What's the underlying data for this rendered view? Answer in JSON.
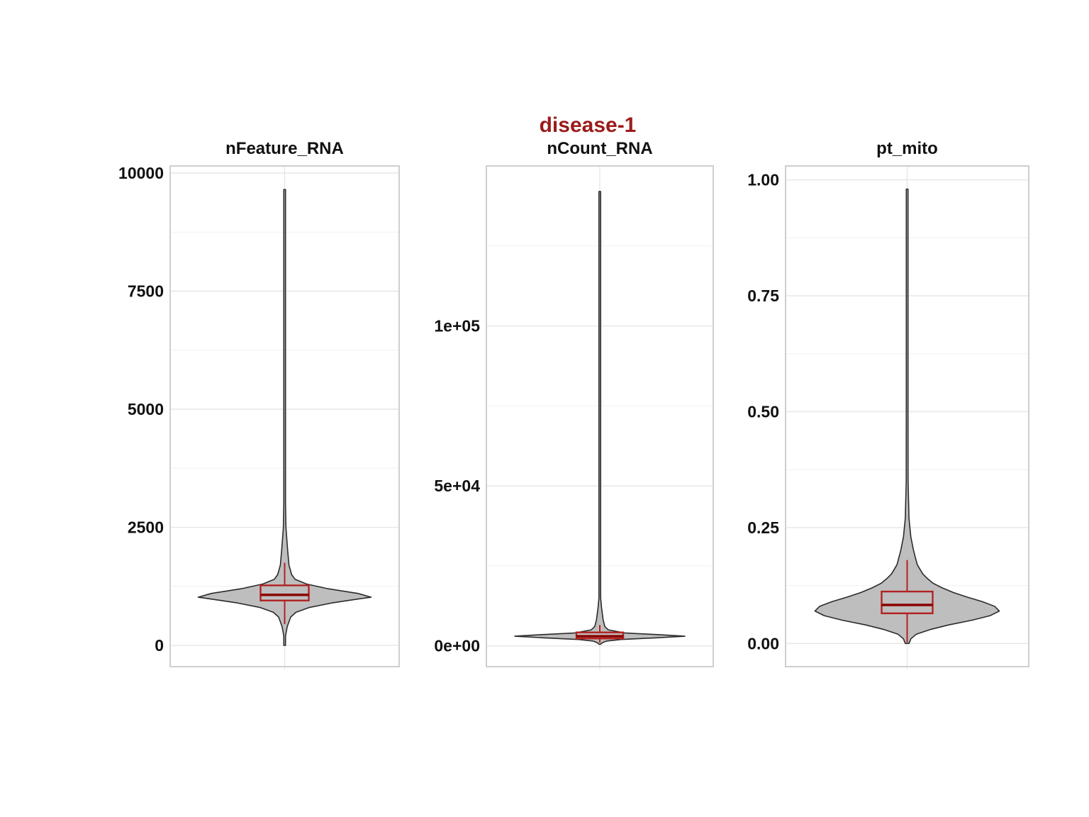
{
  "chart_data": {
    "type": "violin",
    "title": "disease-1",
    "title_color": "#9b1b1b",
    "violin_fill": "#bebebe",
    "box_color": "#b22222",
    "grid": true,
    "panels": [
      {
        "name": "nFeature_RNA",
        "ylim": [
          -450,
          10150
        ],
        "yticks": [
          0,
          2500,
          5000,
          7500,
          10000
        ],
        "ytick_labels": [
          "0",
          "2500",
          "5000",
          "7500",
          "10000"
        ],
        "box": {
          "min": 450,
          "q1": 950,
          "median": 1070,
          "q3": 1270,
          "max": 1750
        },
        "density": [
          [
            0,
            0.002
          ],
          [
            200,
            0.01
          ],
          [
            400,
            0.03
          ],
          [
            600,
            0.07
          ],
          [
            700,
            0.13
          ],
          [
            800,
            0.28
          ],
          [
            900,
            0.55
          ],
          [
            1000,
            0.92
          ],
          [
            1020,
            1.0
          ],
          [
            1100,
            0.85
          ],
          [
            1200,
            0.5
          ],
          [
            1300,
            0.25
          ],
          [
            1400,
            0.12
          ],
          [
            1500,
            0.08
          ],
          [
            1700,
            0.05
          ],
          [
            2000,
            0.035
          ],
          [
            2500,
            0.015
          ],
          [
            3000,
            0.007
          ],
          [
            4000,
            0.004
          ],
          [
            6000,
            0.002
          ],
          [
            8000,
            0.002
          ],
          [
            9650,
            0.002
          ]
        ]
      },
      {
        "name": "nCount_RNA",
        "ylim": [
          -6500,
          150000
        ],
        "yticks": [
          0,
          50000,
          100000
        ],
        "ytick_labels": [
          "0e+00",
          "5e+04",
          "1e+05"
        ],
        "box": {
          "min": 1000,
          "q1": 2300,
          "median": 3000,
          "q3": 4200,
          "max": 6500
        },
        "density": [
          [
            500,
            0.005
          ],
          [
            1000,
            0.03
          ],
          [
            1500,
            0.08
          ],
          [
            2000,
            0.25
          ],
          [
            2500,
            0.65
          ],
          [
            3000,
            1.0
          ],
          [
            3500,
            0.7
          ],
          [
            4000,
            0.3
          ],
          [
            5000,
            0.1
          ],
          [
            6000,
            0.06
          ],
          [
            8000,
            0.04
          ],
          [
            10000,
            0.03
          ],
          [
            12000,
            0.02
          ],
          [
            15000,
            0.01
          ],
          [
            20000,
            0.006
          ],
          [
            30000,
            0.004
          ],
          [
            60000,
            0.002
          ],
          [
            100000,
            0.002
          ],
          [
            142000,
            0.002
          ]
        ]
      },
      {
        "name": "pt_mito",
        "ylim": [
          -0.05,
          1.03
        ],
        "yticks": [
          0.0,
          0.25,
          0.5,
          0.75,
          1.0
        ],
        "ytick_labels": [
          "0.00",
          "0.25",
          "0.50",
          "0.75",
          "1.00"
        ],
        "box": {
          "min": 0.002,
          "q1": 0.065,
          "median": 0.083,
          "q3": 0.112,
          "max": 0.18
        },
        "density": [
          [
            0.0,
            0.02
          ],
          [
            0.01,
            0.04
          ],
          [
            0.02,
            0.1
          ],
          [
            0.03,
            0.25
          ],
          [
            0.04,
            0.45
          ],
          [
            0.05,
            0.7
          ],
          [
            0.06,
            0.9
          ],
          [
            0.07,
            1.0
          ],
          [
            0.08,
            0.95
          ],
          [
            0.09,
            0.82
          ],
          [
            0.1,
            0.65
          ],
          [
            0.11,
            0.5
          ],
          [
            0.12,
            0.38
          ],
          [
            0.13,
            0.28
          ],
          [
            0.14,
            0.22
          ],
          [
            0.15,
            0.17
          ],
          [
            0.17,
            0.11
          ],
          [
            0.2,
            0.07
          ],
          [
            0.23,
            0.04
          ],
          [
            0.27,
            0.02
          ],
          [
            0.35,
            0.01
          ],
          [
            0.5,
            0.006
          ],
          [
            0.7,
            0.004
          ],
          [
            0.98,
            0.003
          ]
        ]
      }
    ]
  }
}
